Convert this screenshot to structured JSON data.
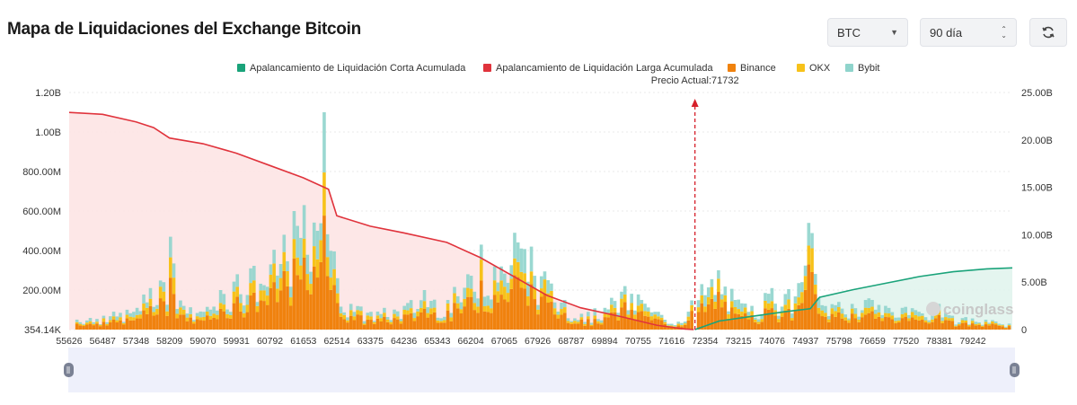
{
  "header": {
    "title": "Mapa de Liquidaciones del Exchange Bitcoin",
    "coin_select": "BTC",
    "range_select": "90 día"
  },
  "icons": {
    "coin_caret": "chevron-down-icon",
    "range_spinner": "spinner-arrows-icon",
    "refresh": "refresh-icon"
  },
  "chart_data": {
    "type": "bar",
    "legend": [
      {
        "name": "Apalancamiento de Liquidación Corta Acumulada",
        "color": "#1aa37a"
      },
      {
        "name": "Apalancamiento de Liquidación Larga Acumulada",
        "color": "#e0333c"
      },
      {
        "name": "Binance",
        "color": "#f0820e"
      },
      {
        "name": "OKX",
        "color": "#f7c21a"
      },
      {
        "name": "Bybit",
        "color": "#8fd4cc"
      }
    ],
    "current_price_label": "Precio Actual:71732",
    "current_price": 71732,
    "x_min": 55626,
    "x_max": 79900,
    "x_tick_labels": [
      "55626",
      "56487",
      "57348",
      "58209",
      "59070",
      "59931",
      "60792",
      "61653",
      "62514",
      "63375",
      "64236",
      "65343",
      "66204",
      "67065",
      "67926",
      "68787",
      "69894",
      "70755",
      "71616",
      "72354",
      "73215",
      "74076",
      "74937",
      "75798",
      "76659",
      "77520",
      "78381",
      "79242"
    ],
    "left_axis": {
      "ticks": [
        "354.14K",
        "200.00M",
        "400.00M",
        "600.00M",
        "800.00M",
        "1.00B",
        "1.20B"
      ],
      "min": 0,
      "max": 1200000000
    },
    "right_axis": {
      "ticks": [
        "0",
        "5.00B",
        "10.00B",
        "15.00B",
        "20.00B",
        "25.00B"
      ],
      "min": 0,
      "max": 25000000000
    },
    "long_cumulative": {
      "x": [
        55626,
        56487,
        57348,
        57800,
        58209,
        59070,
        59931,
        60792,
        61653,
        62300,
        62514,
        63375,
        64236,
        65343,
        66204,
        67065,
        67926,
        68787,
        69894,
        70755,
        71500,
        71700
      ],
      "y": [
        22900000000.0,
        22700000000.0,
        21900000000.0,
        21300000000.0,
        20200000000.0,
        19600000000.0,
        18600000000.0,
        17300000000.0,
        16000000000.0,
        14800000000.0,
        12000000000.0,
        10900000000.0,
        10200000000.0,
        9200000000.0,
        7600000000.0,
        5600000000.0,
        3600000000.0,
        2300000000.0,
        1300000000.0,
        450000000.0,
        50000000.0,
        0
      ]
    },
    "short_cumulative": {
      "x": [
        71732,
        72354,
        73215,
        74076,
        74700,
        74937,
        75798,
        76659,
        77520,
        78381,
        79242,
        79900
      ],
      "y": [
        0,
        900000000.0,
        1400000000.0,
        1900000000.0,
        2200000000.0,
        3400000000.0,
        4200000000.0,
        4900000000.0,
        5600000000.0,
        6100000000.0,
        6400000000.0,
        6500000000.0
      ]
    },
    "bars_profile": [
      {
        "x": 56487,
        "v": 70000000.0
      },
      {
        "x": 57348,
        "v": 110000000.0
      },
      {
        "x": 57700,
        "v": 210000000.0
      },
      {
        "x": 58100,
        "v": 240000000.0
      },
      {
        "x": 58209,
        "v": 470000000.0
      },
      {
        "x": 58600,
        "v": 120000000.0
      },
      {
        "x": 59070,
        "v": 90000000.0
      },
      {
        "x": 59500,
        "v": 200000000.0
      },
      {
        "x": 59931,
        "v": 280000000.0
      },
      {
        "x": 60300,
        "v": 310000000.0
      },
      {
        "x": 60792,
        "v": 330000000.0
      },
      {
        "x": 61200,
        "v": 480000000.0
      },
      {
        "x": 61400,
        "v": 600000000.0
      },
      {
        "x": 61653,
        "v": 630000000.0
      },
      {
        "x": 62000,
        "v": 500000000.0
      },
      {
        "x": 62200,
        "v": 1100000000.0
      },
      {
        "x": 62514,
        "v": 260000000.0
      },
      {
        "x": 62900,
        "v": 130000000.0
      },
      {
        "x": 63375,
        "v": 90000000.0
      },
      {
        "x": 64236,
        "v": 120000000.0
      },
      {
        "x": 64800,
        "v": 200000000.0
      },
      {
        "x": 65343,
        "v": 150000000.0
      },
      {
        "x": 65900,
        "v": 280000000.0
      },
      {
        "x": 66204,
        "v": 430000000.0
      },
      {
        "x": 66600,
        "v": 320000000.0
      },
      {
        "x": 67065,
        "v": 490000000.0
      },
      {
        "x": 67500,
        "v": 420000000.0
      },
      {
        "x": 67926,
        "v": 250000000.0
      },
      {
        "x": 68400,
        "v": 150000000.0
      },
      {
        "x": 68787,
        "v": 80000000.0
      },
      {
        "x": 69400,
        "v": 110000000.0
      },
      {
        "x": 69894,
        "v": 220000000.0
      },
      {
        "x": 70400,
        "v": 150000000.0
      },
      {
        "x": 70755,
        "v": 90000000.0
      },
      {
        "x": 71300,
        "v": 40000000.0
      },
      {
        "x": 71900,
        "v": 230000000.0
      },
      {
        "x": 72354,
        "v": 300000000.0
      },
      {
        "x": 72800,
        "v": 150000000.0
      },
      {
        "x": 73215,
        "v": 120000000.0
      },
      {
        "x": 73700,
        "v": 210000000.0
      },
      {
        "x": 74076,
        "v": 180000000.0
      },
      {
        "x": 74500,
        "v": 240000000.0
      },
      {
        "x": 74700,
        "v": 540000000.0
      },
      {
        "x": 74937,
        "v": 160000000.0
      },
      {
        "x": 75400,
        "v": 140000000.0
      },
      {
        "x": 75798,
        "v": 130000000.0
      },
      {
        "x": 76300,
        "v": 150000000.0
      },
      {
        "x": 76659,
        "v": 120000000.0
      },
      {
        "x": 77100,
        "v": 110000000.0
      },
      {
        "x": 77520,
        "v": 90000000.0
      },
      {
        "x": 78000,
        "v": 130000000.0
      },
      {
        "x": 78381,
        "v": 70000000.0
      },
      {
        "x": 79242,
        "v": 50000000.0
      },
      {
        "x": 79900,
        "v": 30000000.0
      }
    ],
    "watermark": "coinglass"
  }
}
